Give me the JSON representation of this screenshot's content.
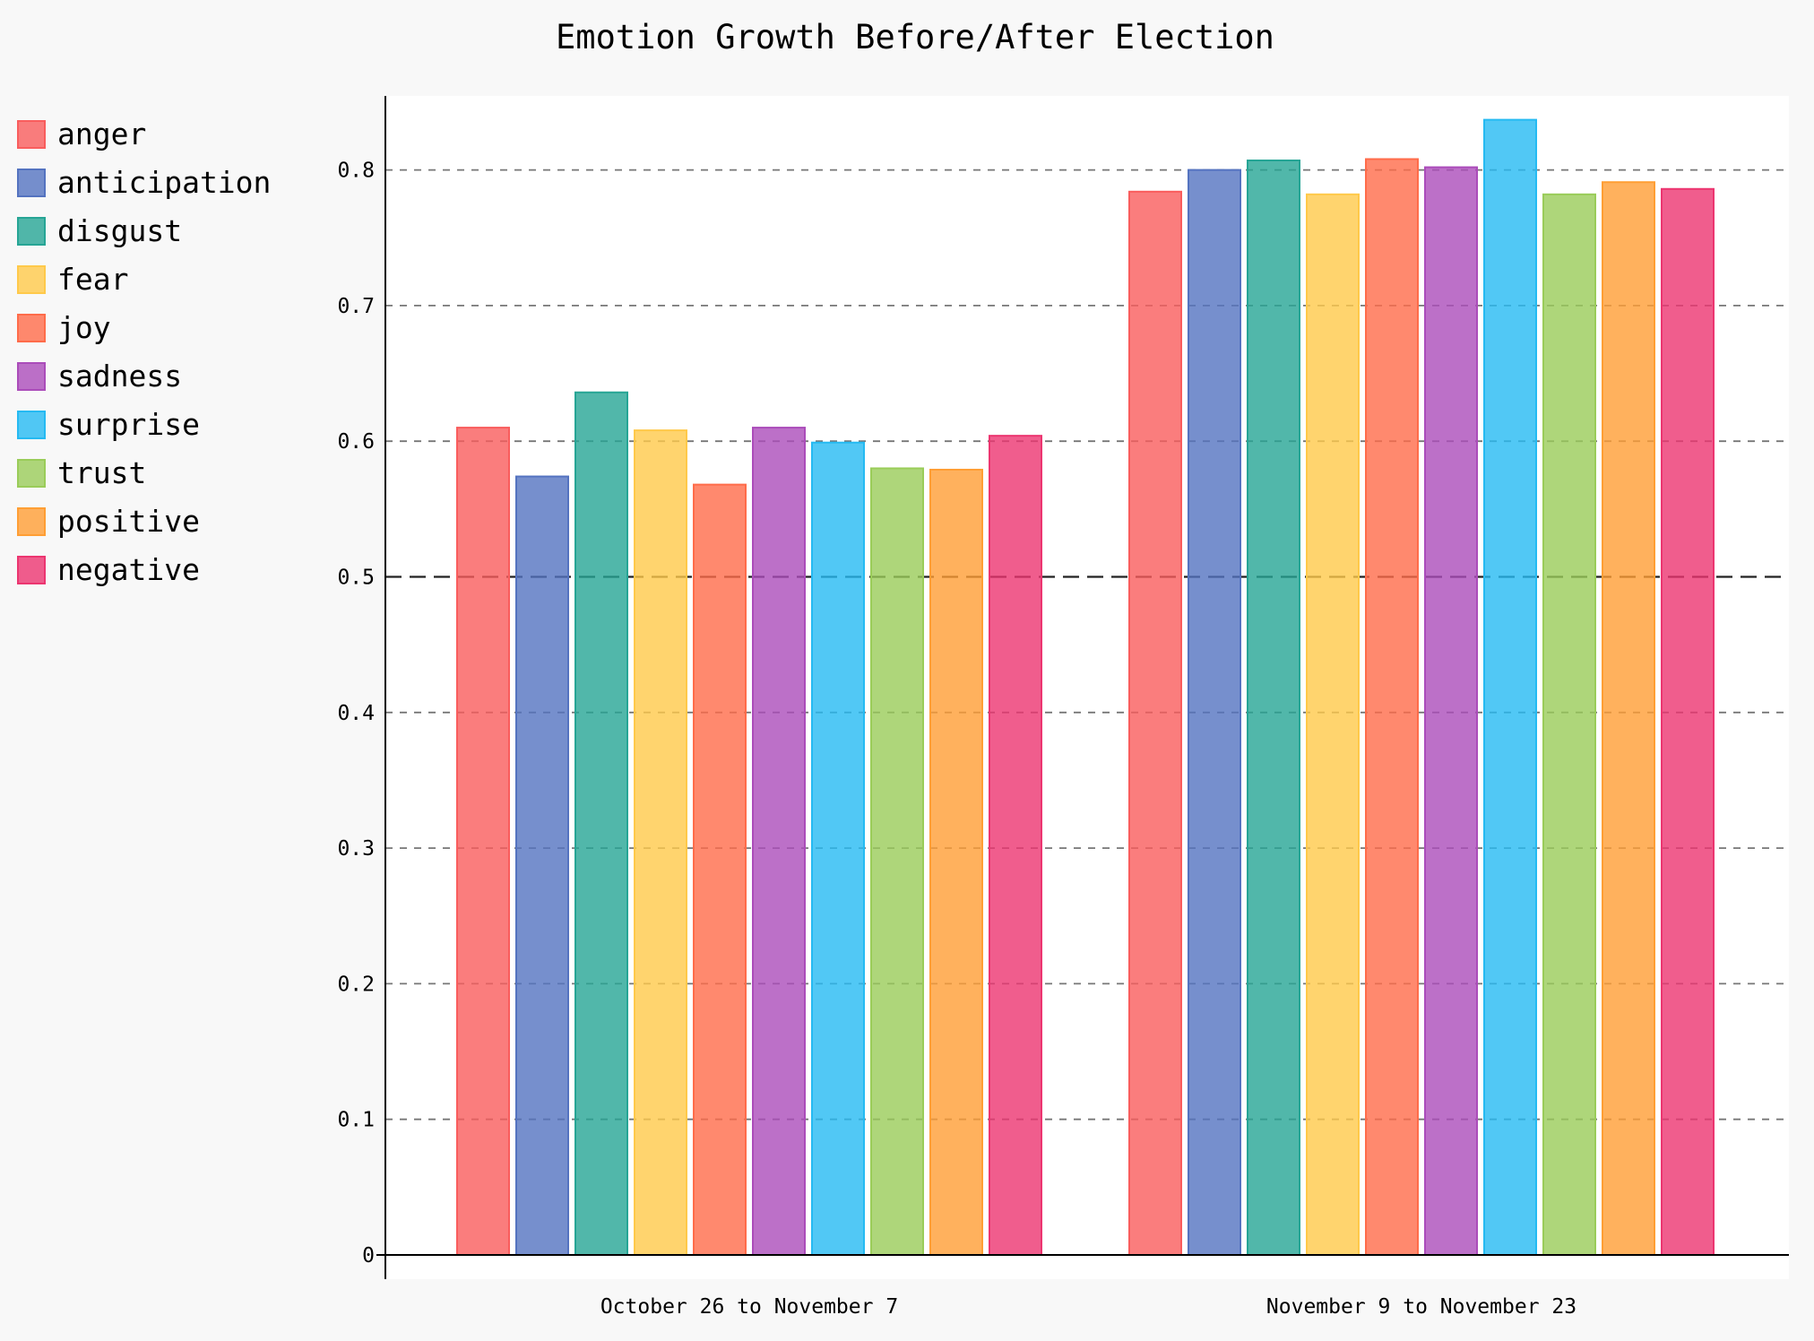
{
  "chart_data": {
    "type": "bar",
    "title": "Emotion Growth Before/After Election",
    "xlabel": "",
    "ylabel": "",
    "ylim": [
      0,
      0.85
    ],
    "yticks": [
      "0",
      "0.1",
      "0.2",
      "0.3",
      "0.4",
      "0.5",
      "0.6",
      "0.7",
      "0.8"
    ],
    "grid": true,
    "legend_position": "left",
    "categories": [
      "October 26 to November 7",
      "November 9 to November 23"
    ],
    "series": [
      {
        "name": "anger",
        "color": "#f95d5d",
        "values": [
          0.61,
          0.784
        ]
      },
      {
        "name": "anticipation",
        "color": "#5473c0",
        "values": [
          0.574,
          0.8
        ]
      },
      {
        "name": "disgust",
        "color": "#26a595",
        "values": [
          0.636,
          0.807
        ]
      },
      {
        "name": "fear",
        "color": "#ffc94a",
        "values": [
          0.608,
          0.782
        ]
      },
      {
        "name": "joy",
        "color": "#ff6c4a",
        "values": [
          0.568,
          0.808
        ]
      },
      {
        "name": "sadness",
        "color": "#ab4cba",
        "values": [
          0.61,
          0.802
        ]
      },
      {
        "name": "surprise",
        "color": "#25baf2",
        "values": [
          0.599,
          0.837
        ]
      },
      {
        "name": "trust",
        "color": "#9acc59",
        "values": [
          0.58,
          0.782
        ]
      },
      {
        "name": "positive",
        "color": "#ff9e34",
        "values": [
          0.579,
          0.791
        ]
      },
      {
        "name": "negative",
        "color": "#ec3570",
        "values": [
          0.604,
          0.786
        ]
      }
    ]
  }
}
